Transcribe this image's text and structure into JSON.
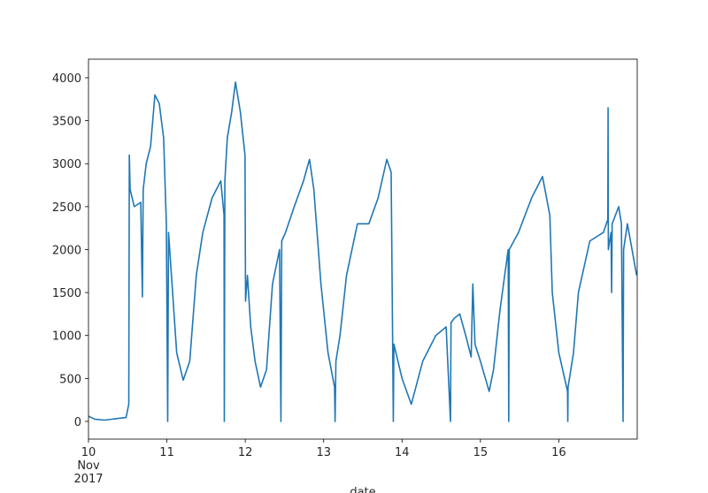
{
  "chart_data": {
    "type": "line",
    "x_label": "date",
    "color": "#1f77b4",
    "xlim": [
      "2017-11-10T00:00",
      "2017-11-17T00:00"
    ],
    "ylim": [
      -206,
      4216
    ],
    "xticks": [
      {
        "value": "2017-11-10T00:00",
        "label": "10\nNov\n2017"
      },
      {
        "value": "2017-11-11T00:00",
        "label": "11"
      },
      {
        "value": "2017-11-12T00:00",
        "label": "12"
      },
      {
        "value": "2017-11-13T00:00",
        "label": "13"
      },
      {
        "value": "2017-11-14T00:00",
        "label": "14"
      },
      {
        "value": "2017-11-15T00:00",
        "label": "15"
      },
      {
        "value": "2017-11-16T00:00",
        "label": "16"
      }
    ],
    "yticks": [
      0,
      500,
      1000,
      1500,
      2000,
      2500,
      3000,
      3500,
      4000
    ],
    "x": [
      "2017-11-10T00:00",
      "2017-11-10T02:00",
      "2017-11-10T05:00",
      "2017-11-10T08:00",
      "2017-11-10T11:30",
      "2017-11-10T12:20",
      "2017-11-10T12:30",
      "2017-11-10T12:45",
      "2017-11-10T14:00",
      "2017-11-10T16:00",
      "2017-11-10T16:30",
      "2017-11-10T16:45",
      "2017-11-10T17:40",
      "2017-11-10T19:00",
      "2017-11-10T20:20",
      "2017-11-10T21:40",
      "2017-11-10T23:00",
      "2017-11-10T23:50",
      "2017-11-11T00:15",
      "2017-11-11T00:30",
      "2017-11-11T01:45",
      "2017-11-11T03:00",
      "2017-11-11T05:00",
      "2017-11-11T07:00",
      "2017-11-11T09:00",
      "2017-11-11T11:00",
      "2017-11-11T13:50",
      "2017-11-11T16:30",
      "2017-11-11T17:30",
      "2017-11-11T17:35",
      "2017-11-11T17:45",
      "2017-11-11T18:30",
      "2017-11-11T19:50",
      "2017-11-11T21:00",
      "2017-11-11T22:30",
      "2017-11-11T23:55",
      "2017-11-12T00:05",
      "2017-11-12T00:40",
      "2017-11-12T01:40",
      "2017-11-12T03:00",
      "2017-11-12T04:40",
      "2017-11-12T06:30",
      "2017-11-12T08:20",
      "2017-11-12T10:30",
      "2017-11-12T10:55",
      "2017-11-12T11:10",
      "2017-11-12T12:20",
      "2017-11-12T15:00",
      "2017-11-12T17:50",
      "2017-11-12T19:40",
      "2017-11-12T21:00",
      "2017-11-12T23:10",
      "2017-11-13T01:20",
      "2017-11-13T03:20",
      "2017-11-13T03:30",
      "2017-11-13T03:45",
      "2017-11-13T05:00",
      "2017-11-13T07:00",
      "2017-11-13T10:20",
      "2017-11-13T13:50",
      "2017-11-13T16:40",
      "2017-11-13T19:20",
      "2017-11-13T20:40",
      "2017-11-13T21:20",
      "2017-11-13T21:30",
      "2017-11-14T00:00",
      "2017-11-14T02:50",
      "2017-11-14T06:20",
      "2017-11-14T10:20",
      "2017-11-14T13:30",
      "2017-11-14T14:50",
      "2017-11-14T15:00",
      "2017-11-14T16:00",
      "2017-11-14T17:40",
      "2017-11-14T19:30",
      "2017-11-14T21:10",
      "2017-11-14T21:40",
      "2017-11-14T22:20",
      "2017-11-15T00:00",
      "2017-11-15T02:40",
      "2017-11-15T04:00",
      "2017-11-15T06:00",
      "2017-11-15T08:30",
      "2017-11-15T08:40",
      "2017-11-15T08:50",
      "2017-11-15T11:40",
      "2017-11-15T15:40",
      "2017-11-15T19:00",
      "2017-11-15T21:15",
      "2017-11-15T22:00",
      "2017-11-16T00:00",
      "2017-11-16T02:40",
      "2017-11-16T02:45",
      "2017-11-16T02:50",
      "2017-11-16T04:30",
      "2017-11-16T06:00",
      "2017-11-16T09:30",
      "2017-11-16T13:40",
      "2017-11-16T15:00",
      "2017-11-16T15:05",
      "2017-11-16T15:10",
      "2017-11-16T16:00",
      "2017-11-16T16:10",
      "2017-11-16T16:20",
      "2017-11-16T18:20",
      "2017-11-16T19:10",
      "2017-11-16T19:40",
      "2017-11-16T19:50",
      "2017-11-16T21:00",
      "2017-11-16T23:50"
    ],
    "values": [
      60,
      25,
      15,
      30,
      45,
      200,
      3100,
      2700,
      2500,
      2550,
      1450,
      2700,
      3000,
      3200,
      3800,
      3700,
      3300,
      2300,
      0,
      2200,
      1500,
      800,
      480,
      700,
      1700,
      2200,
      2600,
      2800,
      2400,
      0,
      2800,
      3300,
      3600,
      3950,
      3600,
      3100,
      1400,
      1700,
      1100,
      700,
      400,
      600,
      1600,
      2000,
      0,
      2100,
      2200,
      2500,
      2800,
      3050,
      2700,
      1600,
      800,
      400,
      0,
      700,
      1000,
      1700,
      2300,
      2300,
      2600,
      3050,
      2900,
      0,
      900,
      500,
      200,
      700,
      1000,
      1100,
      0,
      1150,
      1200,
      1250,
      1000,
      750,
      1600,
      900,
      700,
      350,
      600,
      1300,
      2000,
      0,
      2000,
      2200,
      2600,
      2850,
      2400,
      1500,
      800,
      350,
      0,
      400,
      800,
      1500,
      2100,
      2200,
      2350,
      3650,
      2000,
      2200,
      1500,
      2300,
      2500,
      2300,
      0,
      2000,
      2300,
      1700
    ]
  }
}
